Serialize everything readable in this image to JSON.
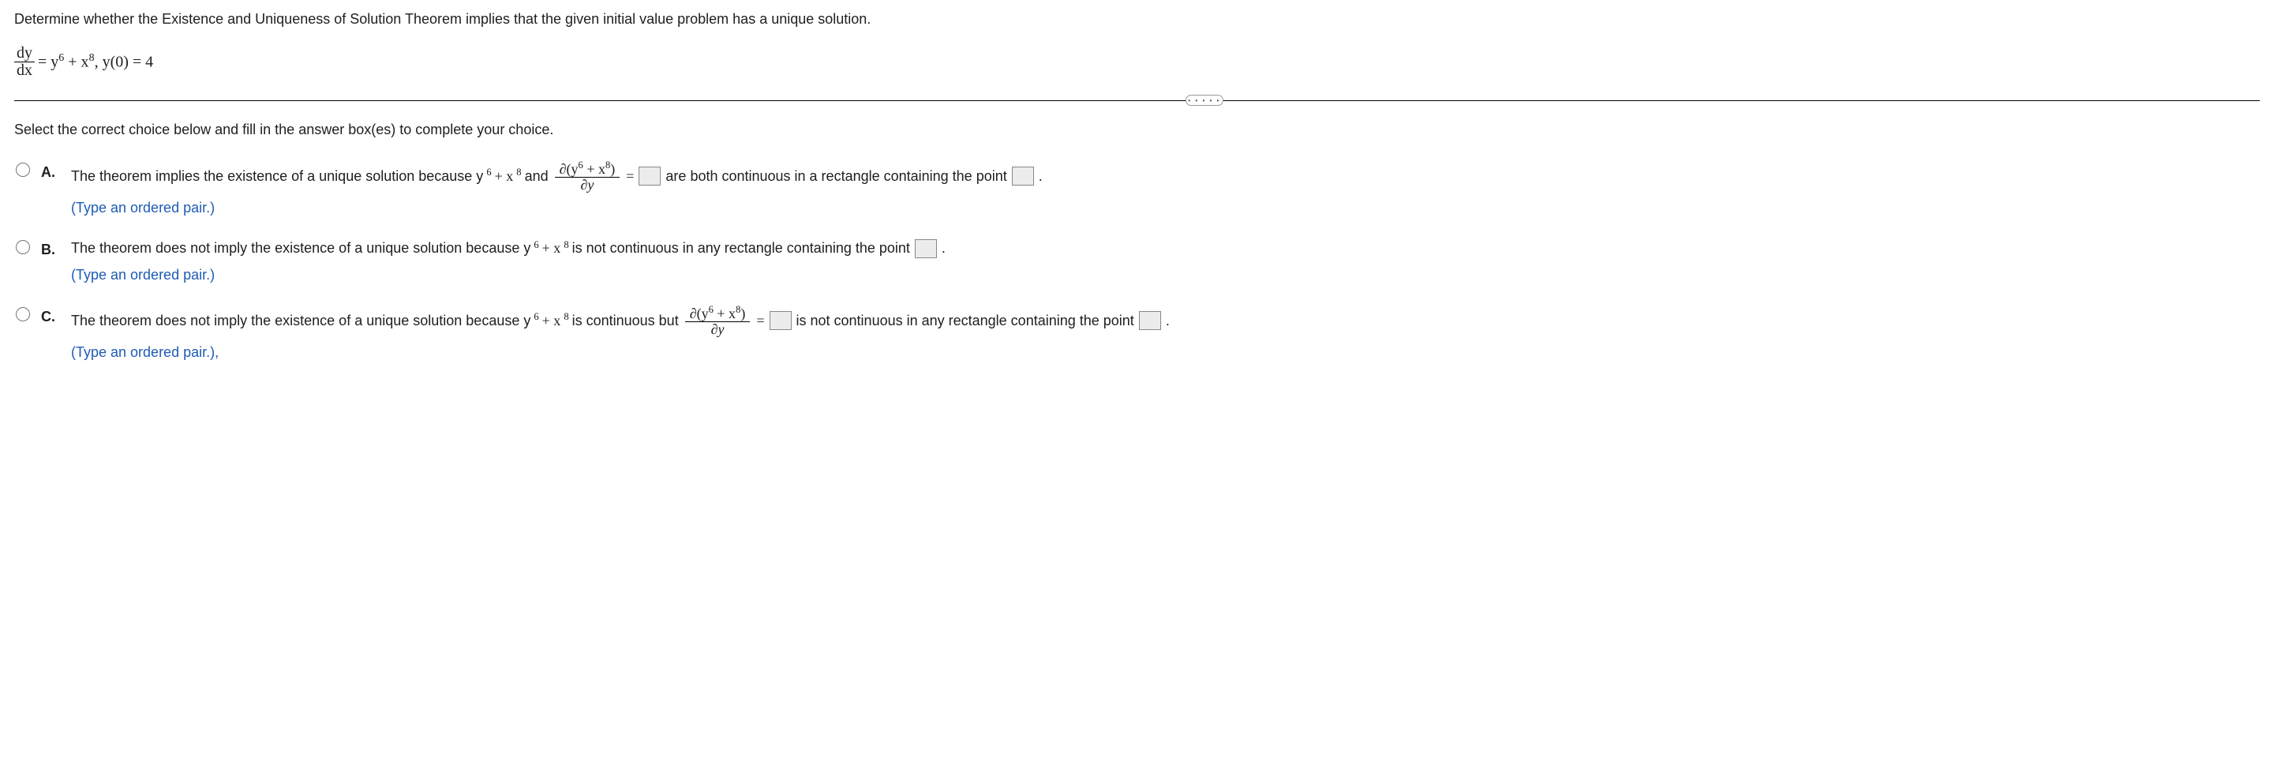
{
  "question": "Determine whether the Existence and Uniqueness of Solution Theorem implies that the given initial value problem has a unique solution.",
  "equation": {
    "frac_num": "dy",
    "frac_den": "dx",
    "rhs": " = y",
    "rhs_sup1": "6",
    "rhs_mid": " + x",
    "rhs_sup2": "8",
    "rhs_tail": ",   y(0) = 4"
  },
  "instruction": "Select the correct choice below and fill in the answer box(es) to complete your choice.",
  "choices": {
    "A": {
      "label": "A.",
      "pre": "The theorem implies the existence of a unique solution because y",
      "sup1": "6",
      "mid1": " + x",
      "sup2": "8",
      "mid2": " and ",
      "pf_num_pre": "∂",
      "pf_num_open": "(",
      "pf_num_y": "y",
      "pf_num_s1": "6",
      "pf_num_plus": " + x",
      "pf_num_s2": "8",
      "pf_num_close": ")",
      "pf_den": "∂y",
      "eq": " = ",
      "post": " are both continuous in a rectangle containing the point ",
      "period": " .",
      "hint": "(Type an ordered pair.)"
    },
    "B": {
      "label": "B.",
      "pre": "The theorem does not imply the existence of a unique solution because y",
      "sup1": "6",
      "mid1": " + x",
      "sup2": "8",
      "post": " is not continuous in any rectangle containing the point ",
      "period": " .",
      "hint": "(Type an ordered pair.)"
    },
    "C": {
      "label": "C.",
      "pre": "The theorem does not imply the existence of a unique solution because y",
      "sup1": "6",
      "mid1": " + x",
      "sup2": "8",
      "mid2": " is continuous but ",
      "pf_num_pre": "∂",
      "pf_num_open": "(",
      "pf_num_y": "y",
      "pf_num_s1": "6",
      "pf_num_plus": " + x",
      "pf_num_s2": "8",
      "pf_num_close": ")",
      "pf_den": "∂y",
      "eq": " = ",
      "post": " is not continuous in any rectangle containing the point ",
      "period": " .",
      "hint": "(Type an ordered pair.),"
    }
  },
  "styling": {
    "body_font_size": 18,
    "math_font": "Times New Roman",
    "text_font": "Arial",
    "hint_color": "#1f5bb5",
    "answer_box_bg": "#ececec",
    "answer_box_border": "#888888",
    "divider_border": "#000000",
    "pill_border": "#999999",
    "text_color": "#202020"
  }
}
